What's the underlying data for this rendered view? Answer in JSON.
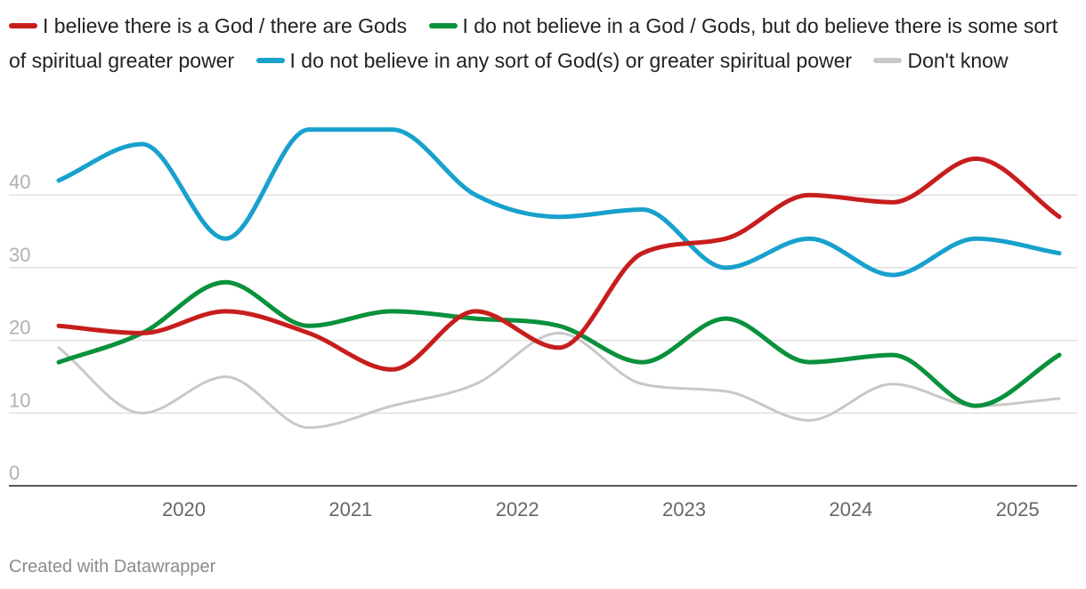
{
  "chart_data": {
    "type": "line",
    "x": [
      "2019-08",
      "2020-02",
      "2020-08",
      "2021-02",
      "2021-08",
      "2022-02",
      "2022-08",
      "2023-02",
      "2023-08",
      "2024-02",
      "2024-08",
      "2025-02",
      "2025-08"
    ],
    "xticks": [
      "2020",
      "2021",
      "2022",
      "2023",
      "2024",
      "2025"
    ],
    "yticks": [
      "0",
      "10",
      "20",
      "30",
      "40"
    ],
    "ylim": [
      0,
      50
    ],
    "grid": true,
    "legend_position": "top",
    "series": [
      {
        "name": "I believe there is a God / there are Gods",
        "color": "#c71e1d",
        "values": [
          22,
          21,
          24,
          21,
          16,
          24,
          19,
          32,
          34,
          40,
          39,
          45,
          37
        ]
      },
      {
        "name": "I do not believe in a God / Gods, but do believe there is some sort of spiritual greater power",
        "color": "#09913c",
        "values": [
          17,
          21,
          28,
          22,
          24,
          23,
          22,
          17,
          23,
          17,
          18,
          11,
          18
        ]
      },
      {
        "name": "I do not believe in any sort of God(s) or greater spiritual power",
        "color": "#18a1cd",
        "values": [
          42,
          47,
          34,
          49,
          49,
          40,
          37,
          38,
          30,
          34,
          29,
          34,
          32
        ]
      },
      {
        "name": "Don't know",
        "color": "#c8c8c8",
        "values": [
          19,
          10,
          15,
          8,
          11,
          14,
          21,
          14,
          13,
          9,
          14,
          11,
          12
        ]
      }
    ]
  },
  "footer": "Created with Datawrapper"
}
